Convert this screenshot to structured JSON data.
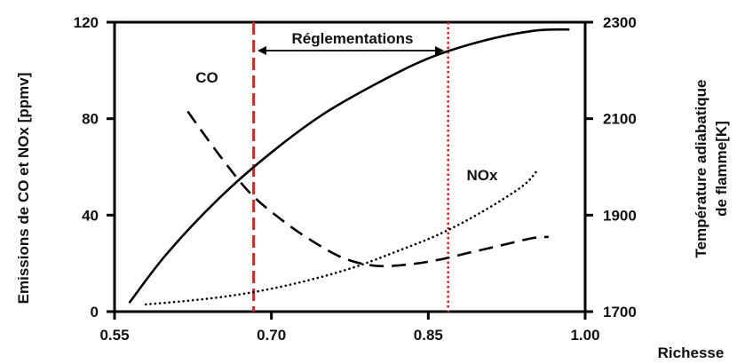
{
  "chart_data": {
    "type": "line",
    "x_axis": {
      "label": "Richesse",
      "ticks": [
        "0.55",
        "0.70",
        "0.85",
        "1.00"
      ],
      "range": [
        0.55,
        1.0
      ]
    },
    "y_axis_left": {
      "label": "Emissions de CO et NOx [ppmv]",
      "ticks": [
        "0",
        "40",
        "80",
        "120"
      ],
      "range": [
        0,
        120
      ]
    },
    "y_axis_right": {
      "label_line1": "Température adiabatique",
      "label_line2": "de flamme[K]",
      "ticks": [
        "1700",
        "1900",
        "2100",
        "2300"
      ],
      "range": [
        1700,
        2300
      ]
    },
    "series": [
      {
        "name": "Température",
        "axis": "right",
        "style": "solid",
        "x": [
          0.564,
          0.6,
          0.65,
          0.7,
          0.75,
          0.8,
          0.85,
          0.9,
          0.95,
          0.985
        ],
        "y": [
          1718,
          1820,
          1935,
          2030,
          2110,
          2172,
          2225,
          2260,
          2282,
          2285
        ]
      },
      {
        "name": "CO",
        "axis": "left",
        "style": "dashed",
        "x": [
          0.62,
          0.65,
          0.68,
          0.71,
          0.74,
          0.77,
          0.8,
          0.83,
          0.86,
          0.89,
          0.92,
          0.95,
          0.965
        ],
        "y": [
          83,
          65,
          49,
          38,
          29,
          22,
          19,
          19.5,
          21.5,
          24.5,
          27.5,
          30.5,
          31
        ]
      },
      {
        "name": "NOx",
        "axis": "left",
        "style": "dotted",
        "x": [
          0.58,
          0.62,
          0.66,
          0.7,
          0.74,
          0.78,
          0.82,
          0.86,
          0.9,
          0.94,
          0.955
        ],
        "y": [
          3,
          4.5,
          6.5,
          9.5,
          13.5,
          18.5,
          25,
          32,
          41,
          52,
          59
        ]
      }
    ],
    "verticals": [
      {
        "x": 0.683,
        "color": "#e02424",
        "style": "dashed"
      },
      {
        "x": 0.869,
        "color": "#e02424",
        "style": "dotted"
      }
    ],
    "annotations": {
      "reglementations": "Réglementations",
      "co": "CO",
      "nox": "NOx"
    },
    "grid": false
  }
}
